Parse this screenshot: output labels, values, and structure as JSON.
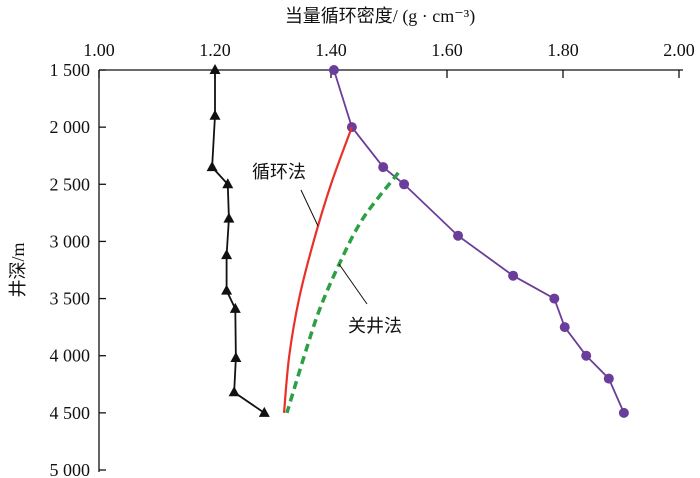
{
  "chart_data": {
    "type": "line",
    "title": "当量循环密度/ (g · cm⁻³)",
    "xlabel": "当量循环密度/ (g · cm⁻³)",
    "ylabel": "井深/m",
    "xlim": [
      1.0,
      2.0
    ],
    "ylim": [
      1500,
      5000
    ],
    "x_ticks": [
      "1.00",
      "1.20",
      "1.40",
      "1.60",
      "1.80",
      "2.00"
    ],
    "y_ticks": [
      "1 500",
      "2 000",
      "2 500",
      "3 000",
      "3 500",
      "4 000",
      "4 500",
      "5 000"
    ],
    "grid": false,
    "series": [
      {
        "name": "triangle-series",
        "color": "#111111",
        "marker": "triangle",
        "x": [
          1.2,
          1.2,
          1.195,
          1.222,
          1.224,
          1.22,
          1.22,
          1.235,
          1.236,
          1.233,
          1.285
        ],
        "depth": [
          1500,
          1900,
          2350,
          2500,
          2800,
          3120,
          3430,
          3590,
          4020,
          4320,
          4500
        ]
      },
      {
        "name": "circle-series",
        "color": "#6a3d9a",
        "marker": "circle",
        "x": [
          1.405,
          1.436,
          1.49,
          1.526,
          1.619,
          1.714,
          1.785,
          1.803,
          1.84,
          1.879,
          1.905
        ],
        "depth": [
          1500,
          2000,
          2350,
          2500,
          2950,
          3300,
          3500,
          3750,
          4000,
          4200,
          4500
        ]
      },
      {
        "name": "循环法",
        "color": "#e8312a",
        "marker": "none",
        "dash": false,
        "x": [
          1.436,
          1.4,
          1.37,
          1.345,
          1.328,
          1.319
        ],
        "depth": [
          2000,
          2500,
          3000,
          3500,
          4000,
          4500
        ]
      },
      {
        "name": "关井法",
        "color": "#2ca043",
        "marker": "none",
        "dash": true,
        "x": [
          1.516,
          1.455,
          1.414,
          1.38,
          1.354,
          1.324
        ],
        "depth": [
          2400,
          2800,
          3200,
          3600,
          4000,
          4500
        ]
      }
    ],
    "annotations": [
      "循环法",
      "关井法"
    ]
  }
}
